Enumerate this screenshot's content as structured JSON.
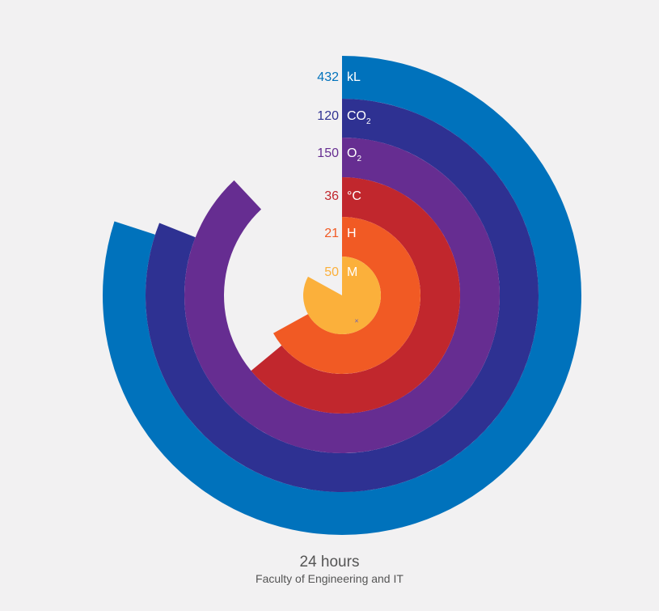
{
  "chart_data": {
    "type": "radial-bar",
    "title": "24 hours",
    "subtitle": "Faculty of Engineering and IT",
    "series": [
      {
        "value": "432",
        "unit": "kL",
        "unit_sub": "",
        "fraction": 0.8,
        "color": "#0072bc"
      },
      {
        "value": "120",
        "unit": "CO",
        "unit_sub": "2",
        "fraction": 0.81,
        "color": "#2e3192"
      },
      {
        "value": "150",
        "unit": "O",
        "unit_sub": "2",
        "fraction": 0.88,
        "color": "#662d91"
      },
      {
        "value": "36",
        "unit": "°C",
        "unit_sub": "",
        "fraction": 0.64,
        "color": "#c1272d"
      },
      {
        "value": "21",
        "unit": "H",
        "unit_sub": "",
        "fraction": 0.67,
        "color": "#f15a24"
      },
      {
        "value": "50",
        "unit": "M",
        "unit_sub": "",
        "fraction": 0.83,
        "color": "#fbb03b"
      }
    ],
    "center_marker": "×"
  }
}
